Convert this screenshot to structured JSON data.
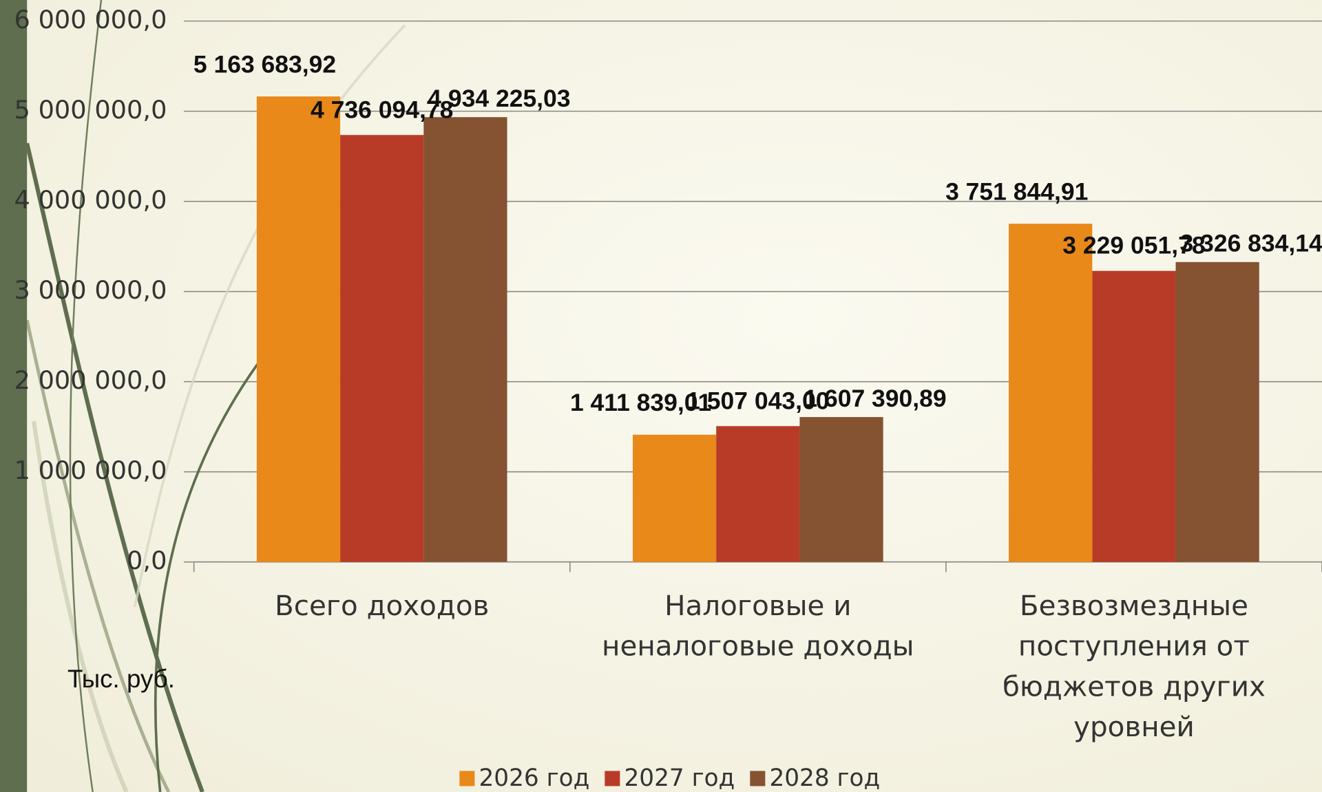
{
  "chart_data": {
    "type": "bar",
    "ylabel": "Тыс. руб.",
    "categories": [
      "Всего доходов",
      "Налоговые и неналоговые доходы",
      "Безвозмездные поступления от бюджетов других уровней"
    ],
    "series": [
      {
        "name": "2026 год",
        "color": "#e8891a",
        "values": [
          5163683.92,
          1411839.01,
          3751844.91
        ],
        "value_labels": [
          "5 163 683,92",
          "1 411 839,01",
          "3 751 844,91"
        ]
      },
      {
        "name": "2027 год",
        "color": "#b83b27",
        "values": [
          4736094.78,
          1507043.0,
          3229051.78
        ],
        "value_labels": [
          "4 736 094,78",
          "1 507 043,00",
          "3 229 051,78"
        ]
      },
      {
        "name": "2028 год",
        "color": "#855232",
        "values": [
          4934225.03,
          1607390.89,
          3326834.14
        ],
        "value_labels": [
          "4 934 225,03",
          "1 607 390,89",
          "3 326 834,14"
        ]
      }
    ],
    "ylim": [
      0,
      6000000
    ],
    "yticks": [
      {
        "value": 0,
        "label": "0,0"
      },
      {
        "value": 1000000,
        "label": "1 000 000,0"
      },
      {
        "value": 2000000,
        "label": "2 000 000,0"
      },
      {
        "value": 3000000,
        "label": "3 000 000,0"
      },
      {
        "value": 4000000,
        "label": "4 000 000,0"
      },
      {
        "value": 5000000,
        "label": "5 000 000,0"
      },
      {
        "value": 6000000,
        "label": "6 000 000,0"
      }
    ],
    "grid": true,
    "legend": "bottom"
  }
}
